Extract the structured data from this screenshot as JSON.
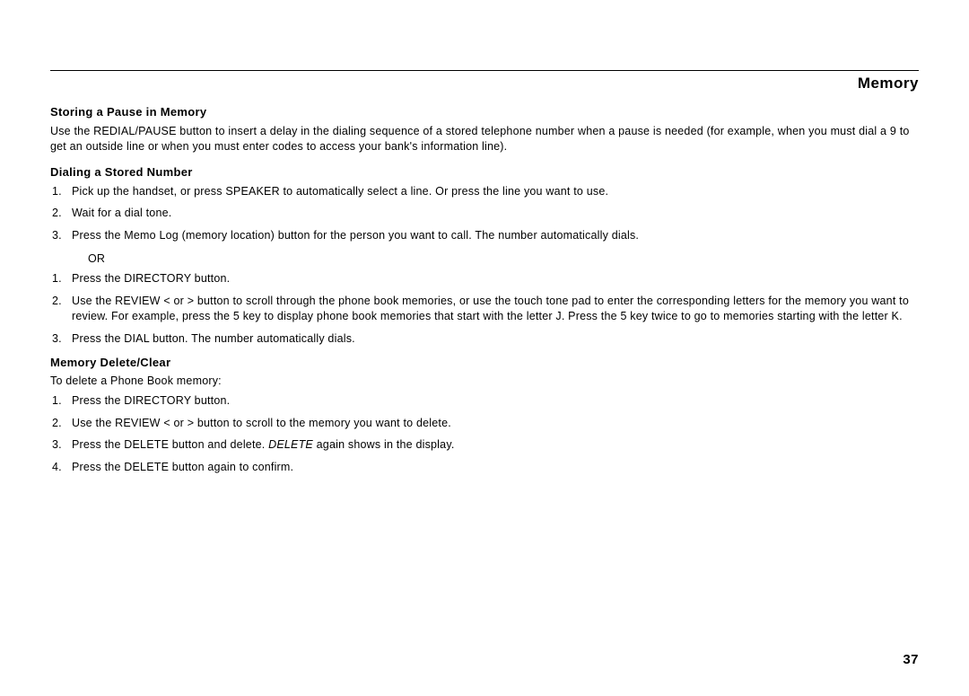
{
  "chapter": "Memory",
  "pageNumber": "37",
  "sections": {
    "pause": {
      "title": "Storing a Pause in Memory",
      "body": "Use the REDIAL/PAUSE button to insert a delay in the dialing sequence of a stored telephone number when a pause is needed (for example, when you must dial a 9 to get an outside line or when you must enter codes to access your bank's information line)."
    },
    "dialing": {
      "title": "Dialing a Stored Number",
      "list1": [
        {
          "n": "1.",
          "t": "Pick up the handset, or press SPEAKER to automatically select a line. Or press the line you want to use."
        },
        {
          "n": "2.",
          "t": "Wait for a dial tone."
        },
        {
          "n": "3.",
          "t": "Press the Memo Log (memory location) button for the person you want to call. The number automatically dials."
        }
      ],
      "or": "OR",
      "list2": [
        {
          "n": "1.",
          "t": "Press the DIRECTORY button."
        },
        {
          "n": "2.",
          "t": "Use the REVIEW < or > button to scroll through the phone book memories, or use the touch tone pad to enter the corresponding letters for the memory you want to review. For example, press the 5 key to display phone book memories that start with the letter J. Press the 5 key twice to go to memories starting with the letter K."
        },
        {
          "n": "3.",
          "t": "Press the DIAL button. The number automatically dials."
        }
      ]
    },
    "delete": {
      "title": "Memory Delete/Clear",
      "intro": "To delete a Phone Book memory:",
      "list": [
        {
          "n": "1.",
          "t": "Press the DIRECTORY button."
        },
        {
          "n": "2.",
          "t": "Use the REVIEW < or > button to scroll to the memory you want to delete."
        },
        {
          "n": "3.",
          "pre": "Press the DELETE button and delete. ",
          "em": "DELETE",
          "post": " again shows in the display."
        },
        {
          "n": "4.",
          "t": "Press the DELETE button again to confirm."
        }
      ]
    }
  }
}
